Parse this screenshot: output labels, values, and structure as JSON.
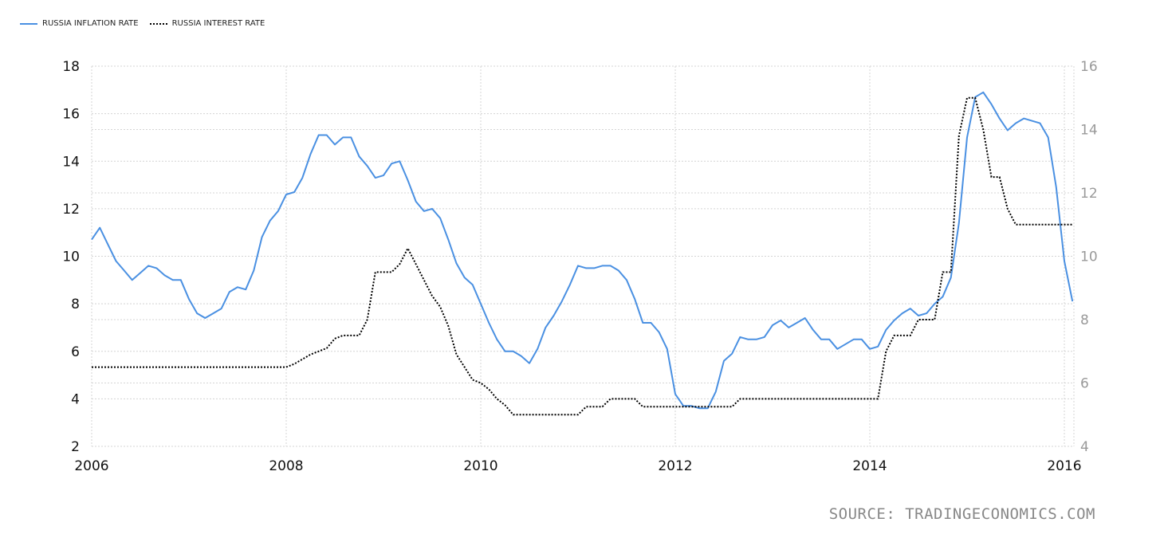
{
  "chart_data": {
    "type": "line",
    "title": "",
    "xlabel": "",
    "ylabel": "",
    "x_start": "2006-01",
    "x_end": "2016-02",
    "frequency": "monthly",
    "x_ticks": [
      "2006",
      "2008",
      "2010",
      "2012",
      "2014",
      "2016"
    ],
    "y_left": {
      "range": [
        2,
        18
      ],
      "ticks": [
        "2",
        "4",
        "6",
        "8",
        "10",
        "12",
        "14",
        "16",
        "18"
      ]
    },
    "y_right": {
      "range": [
        4,
        16
      ],
      "ticks": [
        "4",
        "6",
        "8",
        "10",
        "12",
        "14",
        "16"
      ]
    },
    "grid": true,
    "legend_placement": "top-left",
    "series": [
      {
        "name": "RUSSIA INFLATION RATE",
        "axis": "left",
        "color": "#4a90e2",
        "style": "solid",
        "values": [
          10.7,
          11.2,
          10.5,
          9.8,
          9.4,
          9.0,
          9.3,
          9.6,
          9.5,
          9.2,
          9.0,
          9.0,
          8.2,
          7.6,
          7.4,
          7.6,
          7.8,
          8.5,
          8.7,
          8.6,
          9.4,
          10.8,
          11.5,
          11.9,
          12.6,
          12.7,
          13.3,
          14.3,
          15.1,
          15.1,
          14.7,
          15.0,
          15.0,
          14.2,
          13.8,
          13.3,
          13.4,
          13.9,
          14.0,
          13.2,
          12.3,
          11.9,
          12.0,
          11.6,
          10.7,
          9.7,
          9.1,
          8.8,
          8.0,
          7.2,
          6.5,
          6.0,
          6.0,
          5.8,
          5.5,
          6.1,
          7.0,
          7.5,
          8.1,
          8.8,
          9.6,
          9.5,
          9.5,
          9.6,
          9.6,
          9.4,
          9.0,
          8.2,
          7.2,
          7.2,
          6.8,
          6.1,
          4.2,
          3.7,
          3.7,
          3.6,
          3.6,
          4.3,
          5.6,
          5.9,
          6.6,
          6.5,
          6.5,
          6.6,
          7.1,
          7.3,
          7.0,
          7.2,
          7.4,
          6.9,
          6.5,
          6.5,
          6.1,
          6.3,
          6.5,
          6.5,
          6.1,
          6.2,
          6.9,
          7.3,
          7.6,
          7.8,
          7.5,
          7.6,
          8.0,
          8.3,
          9.1,
          11.4,
          15.0,
          16.7,
          16.9,
          16.4,
          15.8,
          15.3,
          15.6,
          15.8,
          15.7,
          15.6,
          15.0,
          12.9,
          9.8,
          8.1
        ]
      },
      {
        "name": "RUSSIA INTEREST RATE",
        "axis": "right",
        "color": "#000000",
        "style": "dotted",
        "values": [
          6.5,
          6.5,
          6.5,
          6.5,
          6.5,
          6.5,
          6.5,
          6.5,
          6.5,
          6.5,
          6.5,
          6.5,
          6.5,
          6.5,
          6.5,
          6.5,
          6.5,
          6.5,
          6.5,
          6.5,
          6.5,
          6.5,
          6.5,
          6.5,
          6.5,
          6.6,
          6.75,
          6.9,
          7.0,
          7.1,
          7.4,
          7.5,
          7.5,
          7.5,
          8.0,
          9.5,
          9.5,
          9.5,
          9.75,
          10.25,
          9.75,
          9.25,
          8.75,
          8.4,
          7.8,
          6.9,
          6.5,
          6.1,
          6.0,
          5.8,
          5.5,
          5.3,
          5.0,
          5.0,
          5.0,
          5.0,
          5.0,
          5.0,
          5.0,
          5.0,
          5.0,
          5.25,
          5.25,
          5.25,
          5.5,
          5.5,
          5.5,
          5.5,
          5.25,
          5.25,
          5.25,
          5.25,
          5.25,
          5.25,
          5.25,
          5.25,
          5.25,
          5.25,
          5.25,
          5.25,
          5.5,
          5.5,
          5.5,
          5.5,
          5.5,
          5.5,
          5.5,
          5.5,
          5.5,
          5.5,
          5.5,
          5.5,
          5.5,
          5.5,
          5.5,
          5.5,
          5.5,
          5.5,
          7.0,
          7.5,
          7.5,
          7.5,
          8.0,
          8.0,
          8.0,
          9.5,
          9.5,
          13.8,
          15.0,
          15.0,
          14.0,
          12.5,
          12.5,
          11.5,
          11.0,
          11.0,
          11.0,
          11.0,
          11.0,
          11.0,
          11.0,
          11.0
        ]
      }
    ],
    "source": "SOURCE: TRADINGECONOMICS.COM"
  }
}
